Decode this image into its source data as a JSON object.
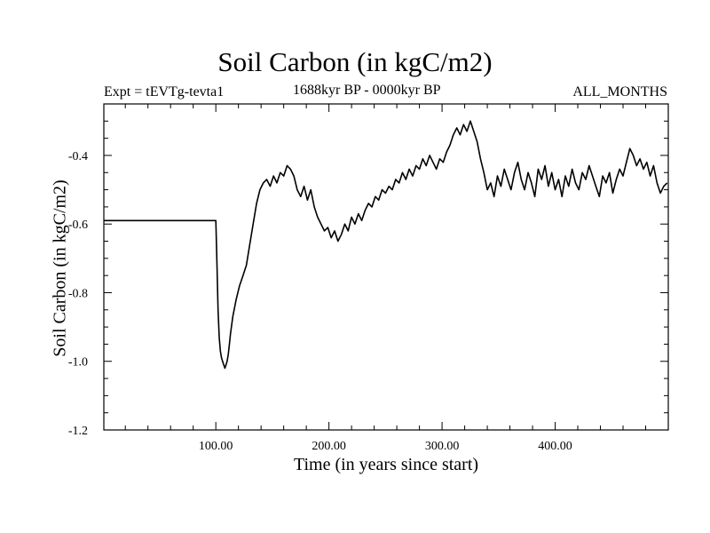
{
  "chart_data": {
    "type": "line",
    "title": "Soil Carbon (in kgC/m2)",
    "subtitle_left": "Expt = tEVTg-tevta1",
    "subtitle_center": "1688kyr BP - 0000kyr BP",
    "subtitle_right": "ALL_MONTHS",
    "xlabel": "Time (in years since start)",
    "ylabel": "Soil Carbon (in kgC/m2)",
    "xlim": [
      1,
      500
    ],
    "ylim": [
      -1.2,
      -0.25
    ],
    "xticks": [
      100,
      200,
      300,
      400
    ],
    "xtick_labels": [
      "100.00",
      "200.00",
      "300.00",
      "400.00"
    ],
    "yticks": [
      -1.2,
      -1.0,
      -0.8,
      -0.6,
      -0.4
    ],
    "ytick_labels": [
      "-1.2",
      "-1.0",
      "-0.8",
      "-0.6",
      "-0.4"
    ],
    "series": [
      {
        "name": "Soil Carbon",
        "color": "#000000",
        "x": [
          1,
          99,
          100,
          101,
          102,
          103,
          104,
          105,
          106,
          107,
          108,
          109,
          110,
          111,
          112,
          113,
          115,
          118,
          121,
          124,
          127,
          130,
          133,
          136,
          139,
          142,
          145,
          148,
          151,
          154,
          157,
          160,
          163,
          166,
          169,
          172,
          175,
          178,
          181,
          184,
          187,
          190,
          193,
          196,
          199,
          202,
          205,
          208,
          211,
          214,
          217,
          220,
          223,
          226,
          229,
          232,
          235,
          238,
          241,
          244,
          247,
          250,
          253,
          256,
          259,
          262,
          265,
          268,
          271,
          274,
          277,
          280,
          283,
          286,
          289,
          292,
          295,
          298,
          301,
          304,
          307,
          310,
          313,
          316,
          319,
          322,
          325,
          328,
          331,
          334,
          337,
          340,
          343,
          346,
          349,
          352,
          355,
          358,
          361,
          364,
          367,
          370,
          373,
          376,
          379,
          382,
          385,
          388,
          391,
          394,
          397,
          400,
          403,
          406,
          409,
          412,
          415,
          418,
          421,
          424,
          427,
          430,
          433,
          436,
          439,
          442,
          445,
          448,
          451,
          454,
          457,
          460,
          463,
          466,
          469,
          472,
          475,
          478,
          481,
          484,
          487,
          490,
          493,
          496,
          499
        ],
        "values": [
          -0.59,
          -0.59,
          -0.59,
          -0.72,
          -0.85,
          -0.93,
          -0.97,
          -0.99,
          -1.0,
          -1.01,
          -1.02,
          -1.01,
          -1.0,
          -0.98,
          -0.95,
          -0.92,
          -0.87,
          -0.82,
          -0.78,
          -0.75,
          -0.72,
          -0.66,
          -0.6,
          -0.54,
          -0.5,
          -0.48,
          -0.47,
          -0.49,
          -0.46,
          -0.48,
          -0.45,
          -0.46,
          -0.43,
          -0.44,
          -0.46,
          -0.5,
          -0.52,
          -0.49,
          -0.53,
          -0.5,
          -0.55,
          -0.58,
          -0.6,
          -0.62,
          -0.61,
          -0.64,
          -0.62,
          -0.65,
          -0.63,
          -0.6,
          -0.62,
          -0.58,
          -0.6,
          -0.57,
          -0.59,
          -0.56,
          -0.54,
          -0.55,
          -0.52,
          -0.53,
          -0.5,
          -0.51,
          -0.49,
          -0.5,
          -0.47,
          -0.48,
          -0.45,
          -0.47,
          -0.44,
          -0.46,
          -0.43,
          -0.44,
          -0.41,
          -0.43,
          -0.4,
          -0.42,
          -0.44,
          -0.41,
          -0.42,
          -0.39,
          -0.37,
          -0.34,
          -0.32,
          -0.34,
          -0.31,
          -0.33,
          -0.3,
          -0.33,
          -0.36,
          -0.41,
          -0.45,
          -0.5,
          -0.48,
          -0.52,
          -0.46,
          -0.49,
          -0.44,
          -0.47,
          -0.5,
          -0.45,
          -0.42,
          -0.47,
          -0.5,
          -0.45,
          -0.48,
          -0.52,
          -0.44,
          -0.47,
          -0.43,
          -0.49,
          -0.45,
          -0.5,
          -0.47,
          -0.52,
          -0.46,
          -0.49,
          -0.44,
          -0.48,
          -0.5,
          -0.45,
          -0.47,
          -0.43,
          -0.46,
          -0.49,
          -0.52,
          -0.46,
          -0.48,
          -0.45,
          -0.51,
          -0.47,
          -0.44,
          -0.46,
          -0.42,
          -0.38,
          -0.4,
          -0.43,
          -0.41,
          -0.44,
          -0.42,
          -0.46,
          -0.43,
          -0.48,
          -0.51,
          -0.49,
          -0.48
        ]
      }
    ]
  }
}
